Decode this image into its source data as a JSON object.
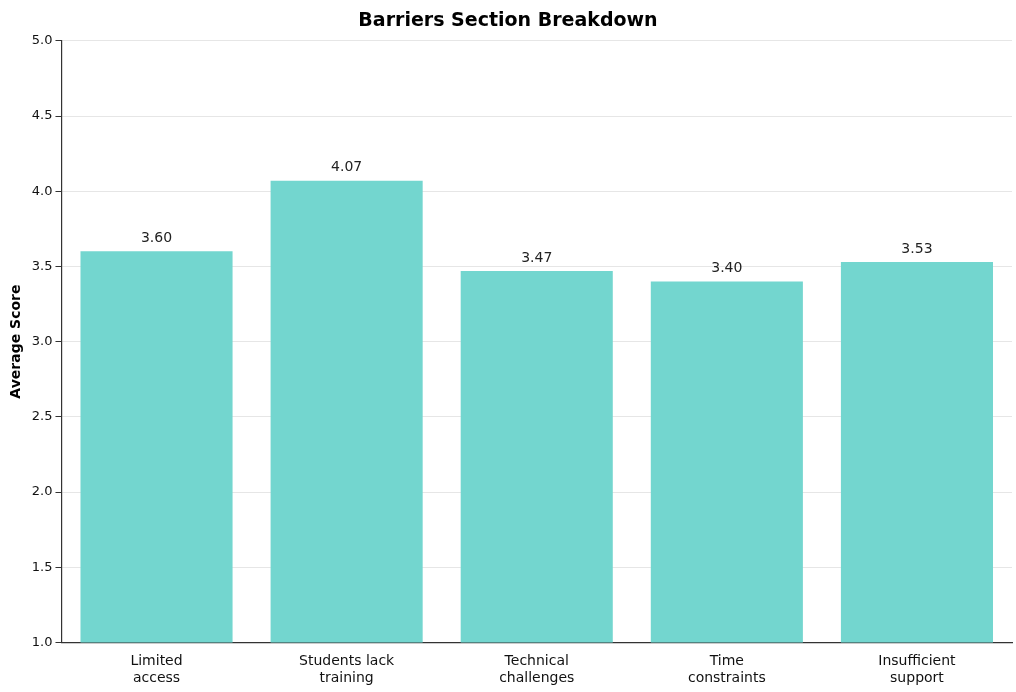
{
  "chart_data": {
    "type": "bar",
    "title": "Barriers Section Breakdown",
    "ylabel": "Average Score",
    "categories": [
      "Limited access",
      "Students lack training",
      "Technical challenges",
      "Time constraints",
      "Insufficient support"
    ],
    "values": [
      3.6,
      4.07,
      3.47,
      3.4,
      3.53
    ],
    "value_labels": [
      "3.60",
      "4.07",
      "3.47",
      "3.40",
      "3.53"
    ],
    "color": "#73d6cf",
    "ylim": [
      1.0,
      5.0
    ],
    "yticks": [
      {
        "value": 1,
        "label": "1.0"
      },
      {
        "value": 1.5,
        "label": "1.5"
      },
      {
        "value": 2,
        "label": "2.0"
      },
      {
        "value": 2.5,
        "label": "2.5"
      },
      {
        "value": 3,
        "label": "3.0"
      },
      {
        "value": 3.5,
        "label": "3.5"
      },
      {
        "value": 4,
        "label": "4.0"
      },
      {
        "value": 4.5,
        "label": "4.5"
      },
      {
        "value": 5,
        "label": "5.0"
      }
    ],
    "grid": "y",
    "legend": false
  }
}
